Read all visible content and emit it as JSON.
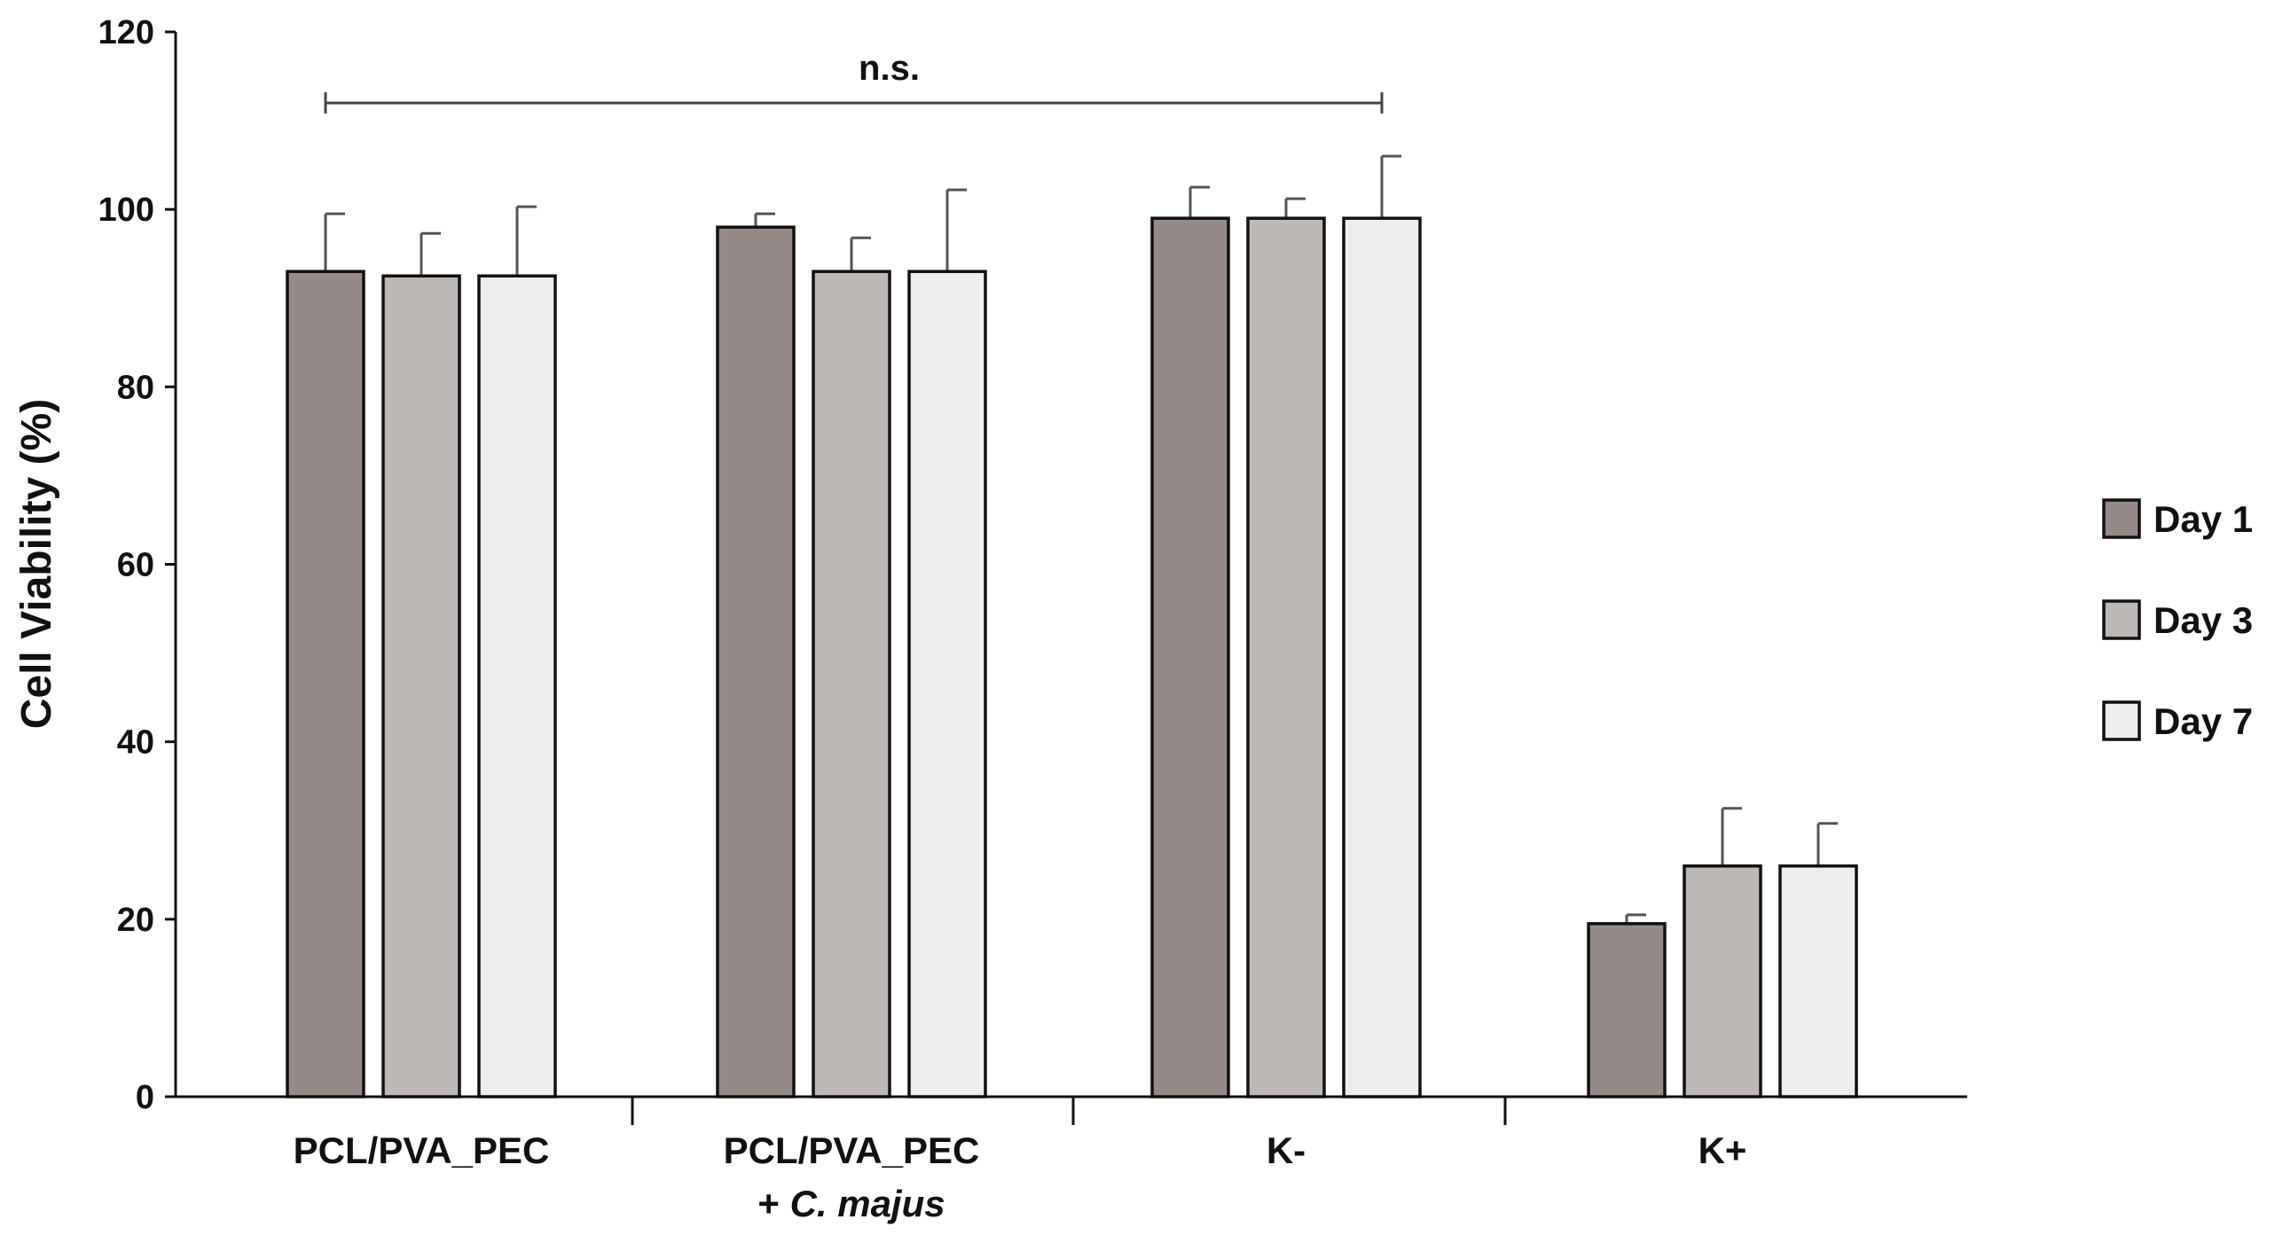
{
  "chart_data": {
    "type": "bar",
    "title": "",
    "xlabel": "",
    "ylabel": "Cell Viability (%)",
    "ylim": [
      0,
      120
    ],
    "yticks": [
      0,
      20,
      40,
      60,
      80,
      100,
      120
    ],
    "grid": false,
    "legend_position": "right",
    "categories": [
      {
        "line1": "PCL/PVA_PEC",
        "line2_prefix": "",
        "line2_italic": ""
      },
      {
        "line1": "PCL/PVA_PEC",
        "line2_prefix": "+ ",
        "line2_italic": "C. majus"
      },
      {
        "line1": "K-",
        "line2_prefix": "",
        "line2_italic": ""
      },
      {
        "line1": "K+",
        "line2_prefix": "",
        "line2_italic": ""
      }
    ],
    "series": [
      {
        "name": "Day 1",
        "color": "#968a89",
        "values": [
          93,
          98,
          99,
          19.5
        ],
        "errors": [
          6.5,
          1.5,
          3.5,
          1.0
        ]
      },
      {
        "name": "Day 3",
        "color": "#bdb8b6",
        "values": [
          92.5,
          93,
          99,
          26
        ],
        "errors": [
          4.8,
          3.8,
          2.2,
          6.5
        ]
      },
      {
        "name": "Day 7",
        "color": "#efeced",
        "values": [
          92.5,
          93,
          99,
          26
        ],
        "errors": [
          7.8,
          9.2,
          7.0,
          4.8
        ]
      }
    ],
    "annotations": [
      {
        "text": "n.s.",
        "from_category": 0,
        "to_category": 2,
        "y": 112
      }
    ]
  }
}
